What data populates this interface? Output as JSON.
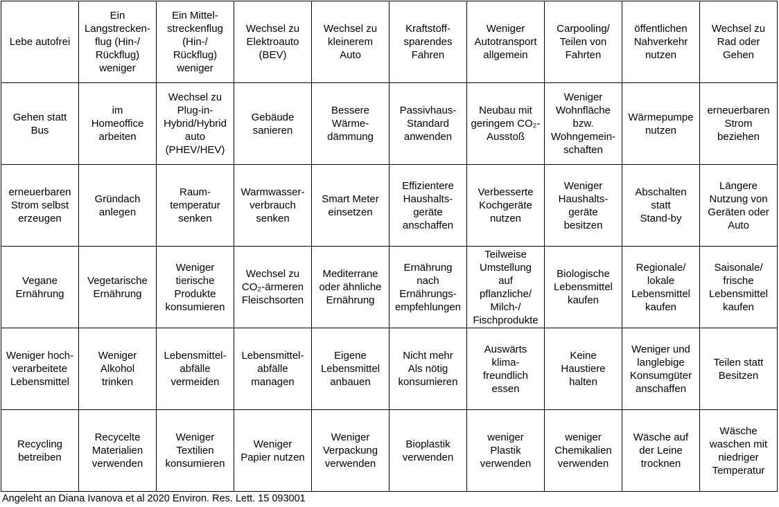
{
  "table": {
    "rows": [
      [
        "Lebe autofrei",
        "Ein\nLangstrecken-\nflug (Hin-/\nRückflug)\nweniger",
        "Ein  Mittel-\nstreckenflug\n(Hin-/\nRückflug)\nweniger",
        "Wechsel zu\nElektroauto\n(BEV)",
        "Wechsel zu\nkleinerem\nAuto",
        "Kraftstoff-\nsparendes\nFahren",
        "Weniger\nAutotransport\nallgemein",
        "Carpooling/\nTeilen von\nFahrten",
        "öffentlichen\nNahverkehr\nnutzen",
        "Wechsel zu\nRad oder\nGehen"
      ],
      [
        "Gehen statt\nBus",
        "im\nHomeoffice\narbeiten",
        "Wechsel zu\nPlug-in-\nHybrid/Hybrid\nauto\n(PHEV/HEV)",
        "Gebäude\nsanieren",
        "Bessere\nWärme-\ndämmung",
        "Passivhaus-\nStandard\nanwenden",
        "Neubau mit\ngeringem CO₂-\nAusstoß",
        "Weniger\nWohnfläche\nbzw.\nWohngemein-\nschaften",
        "Wärmepumpe\nnutzen",
        "erneuerbaren\nStrom\nbeziehen"
      ],
      [
        "erneuerbaren\nStrom selbst\nerzeugen",
        "Gründach\nanlegen",
        "Raum-\ntemperatur\nsenken",
        "Warmwasser-\nverbrauch\nsenken",
        "Smart Meter\neinsetzen",
        "Effizientere\nHaushalts-\ngeräte\nanschaffen",
        "Verbesserte\nKochgeräte\nnutzen",
        "Weniger\nHaushalts-\ngeräte\nbesitzen",
        "Abschalten\nstatt\nStand-by",
        "Längere\nNutzung von\nGeräten oder\nAuto"
      ],
      [
        "Vegane\nErnährung",
        "Vegetarische\nErnährung",
        "Weniger\ntierische\nProdukte\nkonsumieren",
        "Wechsel zu\nCO₂-ärmeren\nFleischsorten",
        "Mediterrane\noder ähnliche\nErnährung",
        "Ernährung\nnach\nErnährungs-\nempfehlungen",
        "Teilweise\nUmstellung\nauf\npflanzliche/\nMilch-/\nFischprodukte",
        "Biologische\nLebensmittel\nkaufen",
        "Regionale/\nlokale\nLebensmittel\nkaufen",
        "Saisonale/\nfrische\nLebensmittel\nkaufen"
      ],
      [
        "Weniger hoch-\nverarbeitete\nLebensmittel",
        "Weniger\nAlkohol\ntrinken",
        "Lebensmittel-\nabfälle\nvermeiden",
        "Lebensmittel-\nabfälle\nmanagen",
        "Eigene\nLebensmittel\nanbauen",
        "Nicht mehr\nAls nötig\nkonsumieren",
        "Auswärts\nklima-\nfreundlich\nessen",
        "Keine\nHaustiere\nhalten",
        "Weniger und\nlanglebige\nKonsumgüter\nanschaffen",
        "Teilen statt\nBesitzen"
      ],
      [
        "Recycling\nbetreiben",
        "Recycelte\nMaterialien\nverwenden",
        "Weniger\nTextilien\nkonsumieren",
        "Weniger\nPapier nutzen",
        "Weniger\nVerpackung\nverwenden",
        "Bioplastik\nverwenden",
        "weniger\nPlastik\nverwenden",
        "weniger\nChemikalien\nverwenden",
        "Wäsche auf\nder Leine\ntrocknen",
        "Wäsche\nwaschen mit\nniedriger\nTemperatur"
      ]
    ]
  },
  "caption": "Angeleht an Diana Ivanova et al 2020 Environ. Res. Lett. 15 093001"
}
